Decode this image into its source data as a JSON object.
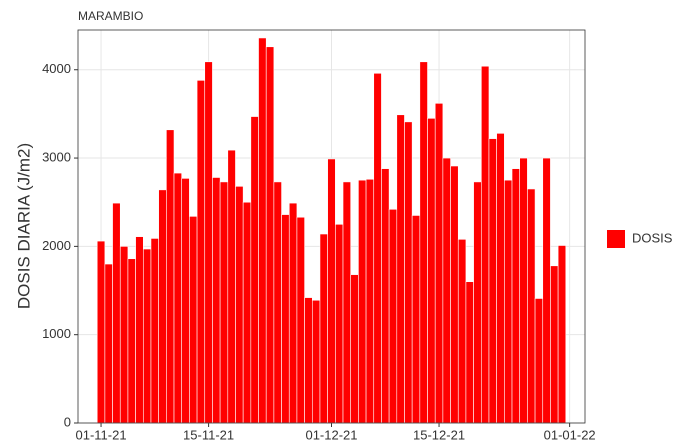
{
  "chart_data": {
    "type": "bar",
    "title": "MARAMBIO",
    "y_label": "DOSIS DIARIA (J/m2)",
    "x": [
      "2021-11-01",
      "2021-11-02",
      "2021-11-03",
      "2021-11-04",
      "2021-11-05",
      "2021-11-06",
      "2021-11-07",
      "2021-11-08",
      "2021-11-09",
      "2021-11-10",
      "2021-11-11",
      "2021-11-12",
      "2021-11-13",
      "2021-11-14",
      "2021-11-15",
      "2021-11-16",
      "2021-11-17",
      "2021-11-18",
      "2021-11-19",
      "2021-11-20",
      "2021-11-21",
      "2021-11-22",
      "2021-11-23",
      "2021-11-24",
      "2021-11-25",
      "2021-11-26",
      "2021-11-27",
      "2021-11-28",
      "2021-11-29",
      "2021-11-30",
      "2021-12-01",
      "2021-12-02",
      "2021-12-03",
      "2021-12-04",
      "2021-12-05",
      "2021-12-06",
      "2021-12-07",
      "2021-12-08",
      "2021-12-09",
      "2021-12-10",
      "2021-12-11",
      "2021-12-12",
      "2021-12-13",
      "2021-12-14",
      "2021-12-15",
      "2021-12-16",
      "2021-12-17",
      "2021-12-18",
      "2021-12-19",
      "2021-12-20",
      "2021-12-21",
      "2021-12-22",
      "2021-12-23",
      "2021-12-24",
      "2021-12-25",
      "2021-12-26",
      "2021-12-27",
      "2021-12-28",
      "2021-12-29",
      "2021-12-30",
      "2021-12-31"
    ],
    "series": [
      {
        "name": "DOSIS",
        "color": "#ff0000",
        "values": [
          2060,
          1800,
          2490,
          2000,
          1860,
          2110,
          1970,
          2090,
          2640,
          3320,
          2830,
          2770,
          2340,
          3880,
          4090,
          2780,
          2730,
          3090,
          2680,
          2500,
          3470,
          4360,
          4260,
          2730,
          2360,
          2490,
          2330,
          1420,
          1390,
          2140,
          2990,
          2250,
          2730,
          1680,
          2750,
          2760,
          3960,
          2880,
          2420,
          3490,
          3410,
          2350,
          4090,
          3450,
          3620,
          3000,
          2910,
          2080,
          1600,
          2730,
          4040,
          3220,
          3280,
          2750,
          2880,
          3000,
          2650,
          1410,
          3000,
          1780,
          2010
        ]
      }
    ],
    "xlim": [
      "2021-10-29",
      "2022-01-03"
    ],
    "xticks": [
      {
        "value": "2021-11-01",
        "label": "01-11-21"
      },
      {
        "value": "2021-11-15",
        "label": "15-11-21"
      },
      {
        "value": "2021-12-01",
        "label": "01-12-21"
      },
      {
        "value": "2021-12-15",
        "label": "15-12-21"
      },
      {
        "value": "2022-01-01",
        "label": "01-01-22"
      }
    ],
    "ylim": [
      0,
      4450
    ],
    "yticks": [
      0,
      1000,
      2000,
      3000,
      4000
    ],
    "grid": true,
    "legend": "right"
  }
}
